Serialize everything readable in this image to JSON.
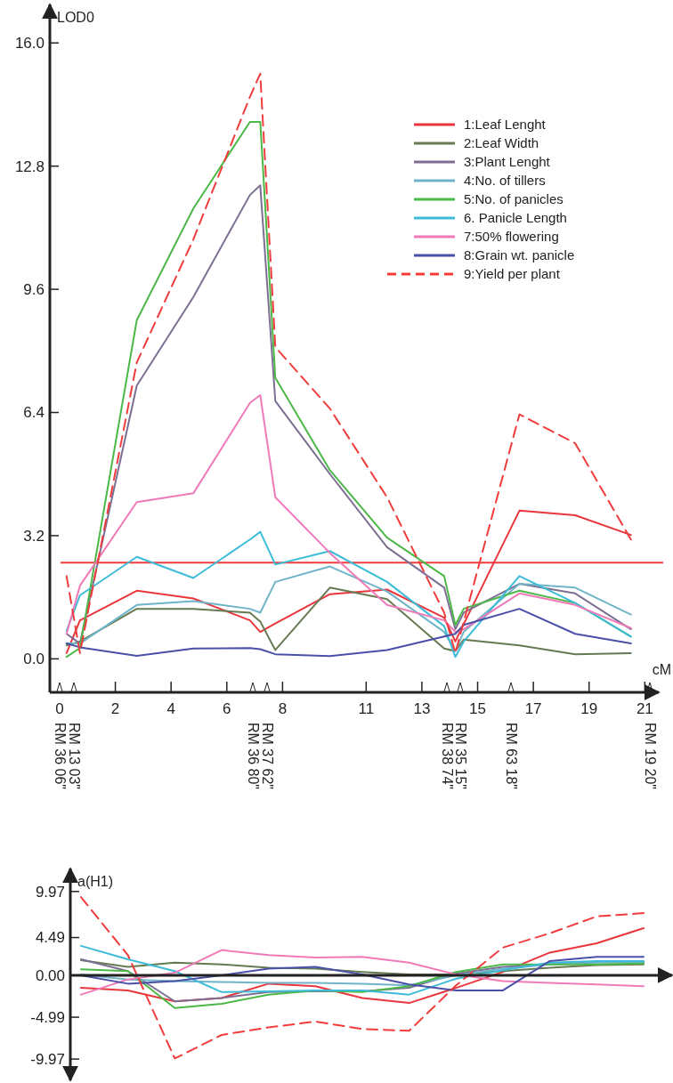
{
  "chart_data": [
    {
      "type": "line",
      "xlabel": "cM",
      "ylabel": "LOD0",
      "legend": "top right",
      "x": [
        0.25,
        0.73,
        2.77,
        4.8,
        6.83,
        7.2,
        7.74,
        9.7,
        11.75,
        13.8,
        14.2,
        14.5,
        16.5,
        18.5,
        20.5
      ],
      "xlim": [
        -0.35,
        21.5
      ],
      "xticks": [
        0,
        2,
        4,
        6,
        8,
        11,
        13,
        15,
        17,
        19,
        21
      ],
      "annotations": [
        "RM 36 06\"",
        "RM 13 03\"",
        "RM 36 80\"",
        "RM 37 62\"",
        "RM 38 74\"",
        "RM 35 15\"",
        "RM 63 18\"",
        "RM 19 20\""
      ],
      "ylim": [
        -0.87,
        17
      ],
      "yticks": [
        {
          "value": 0,
          "label": "0.0"
        },
        {
          "value": 3.2,
          "label": "3.2"
        },
        {
          "value": 6.4,
          "label": "6.4"
        },
        {
          "value": 9.6,
          "label": "9.6"
        },
        {
          "value": 12.8,
          "label": "12.8"
        },
        {
          "value": 16,
          "label": "16.0"
        }
      ],
      "ref_lines": [
        {
          "axis": "y",
          "value": 2.5,
          "color": "#f03c3c"
        }
      ],
      "series": [
        {
          "name": "1:Leaf Lenght",
          "color": "#e8363c",
          "values": [
            0.15,
            1.0,
            1.77,
            1.57,
            1.0,
            0.7,
            0.92,
            1.68,
            1.8,
            1.07,
            0.45,
            0.9,
            3.85,
            3.73,
            3.22
          ]
        },
        {
          "name": "2:Leaf Width",
          "color": "#667a52",
          "values": [
            0.35,
            0.45,
            1.3,
            1.3,
            1.2,
            0.97,
            0.23,
            1.85,
            1.55,
            0.27,
            0.2,
            0.5,
            0.35,
            0.12,
            0.15
          ]
        },
        {
          "name": "3:Plant Lenght",
          "color": "#7d6f94",
          "values": [
            0.65,
            0.4,
            7.1,
            9.4,
            12.05,
            12.3,
            6.7,
            4.8,
            2.9,
            1.85,
            0.77,
            1.2,
            1.95,
            1.7,
            0.77
          ]
        },
        {
          "name": "4:No. of tillers",
          "color": "#6fb4c8",
          "values": [
            0.4,
            0.4,
            1.4,
            1.5,
            1.3,
            1.2,
            2.0,
            2.4,
            1.75,
            0.7,
            0.2,
            0.7,
            1.95,
            1.85,
            1.15
          ]
        },
        {
          "name": "5:No. of panicles",
          "color": "#4cb848",
          "values": [
            0.05,
            0.28,
            8.8,
            11.7,
            13.95,
            13.95,
            7.3,
            4.9,
            3.15,
            2.15,
            0.88,
            1.3,
            1.77,
            1.45,
            0.58
          ]
        },
        {
          "name": "6. Panicle Length",
          "color": "#3cbcd8",
          "values": [
            0.73,
            1.65,
            2.65,
            2.1,
            3.1,
            3.3,
            2.45,
            2.8,
            2.0,
            0.85,
            0.05,
            0.45,
            2.15,
            1.45,
            0.58
          ]
        },
        {
          "name": "7:50% flowering",
          "color": "#f07ab8",
          "values": [
            0.65,
            1.9,
            4.07,
            4.3,
            6.65,
            6.85,
            4.2,
            2.75,
            1.4,
            1.0,
            0.7,
            0.77,
            1.7,
            1.4,
            0.8
          ]
        },
        {
          "name": "8:Grain wt. panicle",
          "color": "#4a50a8",
          "values": [
            0.4,
            0.3,
            0.08,
            0.27,
            0.28,
            0.25,
            0.12,
            0.07,
            0.23,
            0.58,
            0.65,
            0.88,
            1.3,
            0.65,
            0.4
          ]
        },
        {
          "name": "9:Yield per plant",
          "color": "#f03c3c",
          "line_style": "dashed",
          "values": [
            2.15,
            0.15,
            7.7,
            10.9,
            14.6,
            15.2,
            8.1,
            6.5,
            4.2,
            1.2,
            0.15,
            0.96,
            6.35,
            5.6,
            3.1
          ]
        }
      ]
    },
    {
      "type": "line",
      "ylabel": "a(H1)",
      "categories": [
        null,
        null,
        null,
        null,
        null,
        null,
        null,
        null,
        null,
        null,
        null,
        null,
        null
      ],
      "ylim": [
        -12.5,
        12.7
      ],
      "yticks": [
        -9.97,
        -4.99,
        {
          "value": 0,
          "label": "0.00"
        },
        4.49,
        9.97
      ],
      "series": [
        {
          "color": "#e8363c",
          "values": [
            -1.5,
            -1.8,
            -3.1,
            -2.7,
            -1.0,
            -1.3,
            -2.7,
            -3.3,
            -1.5,
            0.4,
            2.7,
            3.8,
            5.6
          ]
        },
        {
          "color": "#667a52",
          "values": [
            1.8,
            1.0,
            1.5,
            1.3,
            0.9,
            0.8,
            0.4,
            0.1,
            0.1,
            0.5,
            0.9,
            1.2,
            1.3
          ]
        },
        {
          "color": "#7d6f94",
          "values": [
            1.9,
            0.5,
            -3.1,
            -2.7,
            -2.0,
            -1.9,
            -1.9,
            -1.5,
            0.2,
            1.0,
            1.3,
            1.6,
            1.6
          ]
        },
        {
          "color": "#6fb4c8",
          "values": [
            0.1,
            -0.5,
            -0.7,
            -0.8,
            -0.9,
            -0.9,
            -1.0,
            -1.2,
            0,
            0.8,
            1.3,
            1.5,
            1.5
          ]
        },
        {
          "color": "#4cb848",
          "values": [
            0.7,
            0.5,
            -3.9,
            -3.4,
            -2.3,
            -1.8,
            -2.0,
            -1.3,
            0.4,
            1.3,
            1.3,
            1.3,
            1.4
          ]
        },
        {
          "color": "#3cbcd8",
          "values": [
            3.5,
            1.9,
            0.5,
            -2.0,
            -1.9,
            -1.8,
            -1.8,
            -2.3,
            -0.4,
            0.6,
            1.5,
            1.7,
            1.7
          ]
        },
        {
          "color": "#f07ab8",
          "values": [
            -2.3,
            -0.5,
            0.3,
            3.0,
            2.4,
            2.1,
            2.2,
            1.5,
            0.1,
            -0.7,
            -0.9,
            -1.1,
            -1.3
          ]
        },
        {
          "color": "#4a50a8",
          "values": [
            0,
            -1.0,
            -0.7,
            0,
            0.8,
            1.0,
            0.1,
            -1.1,
            -1.8,
            -1.8,
            1.7,
            2.2,
            2.2
          ]
        },
        {
          "color": "#f03c3c",
          "line_style": "dashed",
          "values": [
            9.3,
            2.4,
            -9.9,
            -7.1,
            -6.2,
            -5.5,
            -6.4,
            -6.6,
            -1.2,
            3.3,
            5.0,
            7.0,
            7.4
          ]
        }
      ]
    }
  ]
}
